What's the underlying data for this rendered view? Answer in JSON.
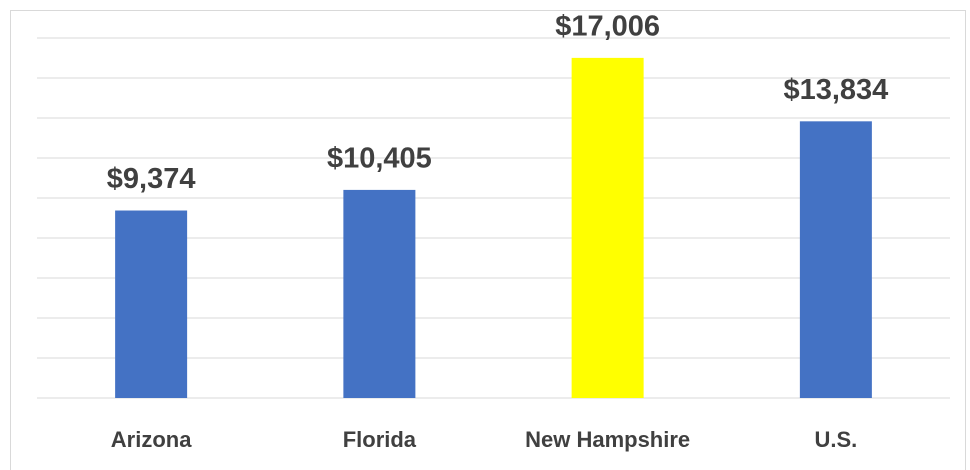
{
  "chart_data": {
    "type": "bar",
    "categories": [
      "Arizona",
      "Florida",
      "New Hampshire",
      "U.S."
    ],
    "values": [
      9374,
      10405,
      17006,
      13834
    ],
    "value_labels": [
      "$9,374",
      "$10,405",
      "$17,006",
      "$13,834"
    ],
    "colors": [
      "#4472c4",
      "#4472c4",
      "#ffff00",
      "#4472c4"
    ],
    "ylim": [
      0,
      18000
    ],
    "yticks": [
      0,
      2000,
      4000,
      6000,
      8000,
      10000,
      12000,
      14000,
      16000,
      18000
    ],
    "grid": true
  }
}
